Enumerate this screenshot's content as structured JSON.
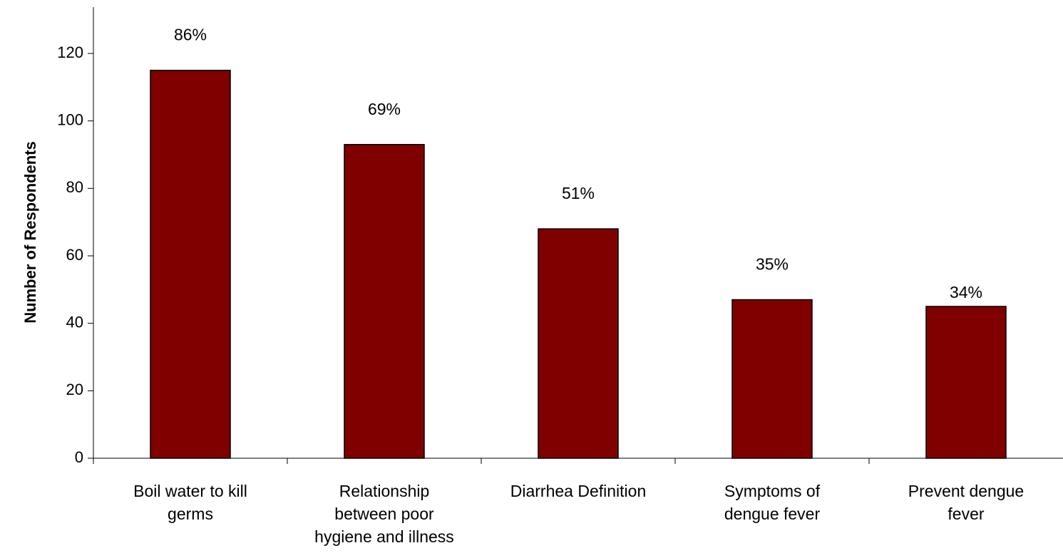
{
  "chart_data": {
    "type": "bar",
    "title": "",
    "xlabel": "",
    "ylabel": "Number of Respondents",
    "ylim": [
      0,
      130
    ],
    "yticks": [
      0,
      20,
      40,
      60,
      80,
      100,
      120
    ],
    "grid": false,
    "legend": "none",
    "categories": [
      [
        "Boil water to kill",
        "germs"
      ],
      [
        "Relationship",
        "between poor",
        "hygiene and illness"
      ],
      [
        "Diarrhea Definition"
      ],
      [
        "Symptoms of",
        "dengue fever"
      ],
      [
        "Prevent dengue",
        "fever"
      ]
    ],
    "values": [
      115,
      93,
      68,
      47,
      45
    ],
    "data_labels": [
      "86%",
      "69%",
      "51%",
      "35%",
      "34%"
    ],
    "bar_color": "#800000"
  }
}
